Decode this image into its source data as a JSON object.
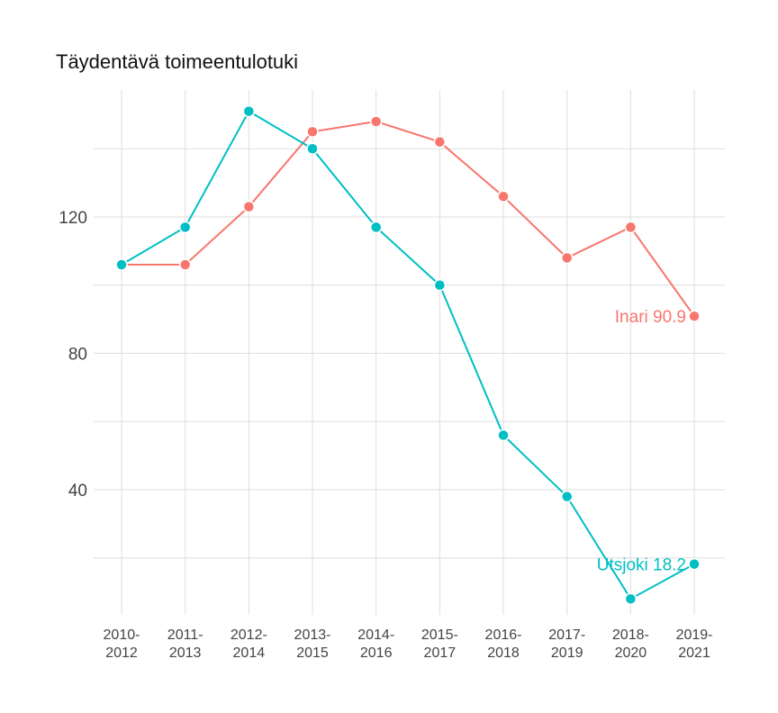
{
  "title": "Täydentävä toimeentulotuki",
  "chart_data": {
    "type": "line",
    "title": "Täydentävä toimeentulotuki",
    "xlabel": "",
    "ylabel": "",
    "categories": [
      "2010-2012",
      "2011-2013",
      "2012-2014",
      "2013-2015",
      "2014-2016",
      "2015-2017",
      "2016-2018",
      "2017-2019",
      "2018-2020",
      "2019-2021"
    ],
    "x_tick_lines": [
      [
        "2010-",
        "2012"
      ],
      [
        "2011-",
        "2013"
      ],
      [
        "2012-",
        "2014"
      ],
      [
        "2013-",
        "2015"
      ],
      [
        "2014-",
        "2016"
      ],
      [
        "2015-",
        "2017"
      ],
      [
        "2016-",
        "2018"
      ],
      [
        "2017-",
        "2019"
      ],
      [
        "2018-",
        "2020"
      ],
      [
        "2019-",
        "2021"
      ]
    ],
    "y_ticks": [
      40,
      80,
      120
    ],
    "y_minor_gridlines": [
      20,
      60,
      100,
      140
    ],
    "ylim": [
      2,
      154
    ],
    "grid": true,
    "series": [
      {
        "name": "Inari",
        "color": "#F8766D",
        "values": [
          106,
          106,
          123,
          145,
          148,
          142,
          126,
          108,
          117,
          90.9
        ],
        "end_label": "Inari 90.9"
      },
      {
        "name": "Utsjoki",
        "color": "#00BFC4",
        "values": [
          106,
          117,
          151,
          140,
          117,
          100,
          56,
          38,
          8,
          18.2
        ],
        "end_label": "Utsjoki 18.2"
      }
    ]
  }
}
